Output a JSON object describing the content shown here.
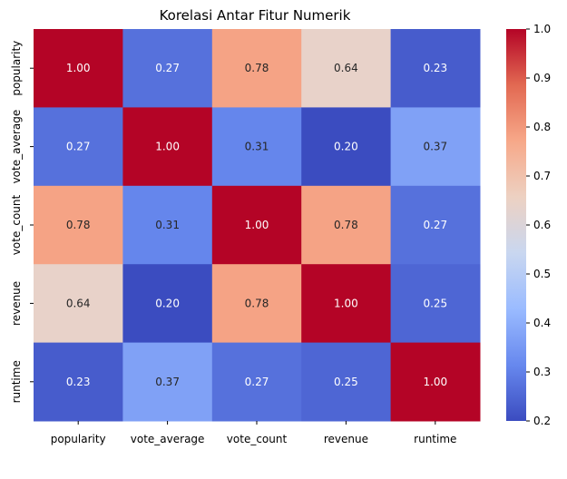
{
  "chart_data": {
    "type": "heatmap",
    "title": "Korelasi Antar Fitur Numerik",
    "xlabel": "",
    "ylabel": "",
    "x_categories": [
      "popularity",
      "vote_average",
      "vote_count",
      "revenue",
      "runtime"
    ],
    "y_categories": [
      "popularity",
      "vote_average",
      "vote_count",
      "revenue",
      "runtime"
    ],
    "values": [
      [
        1.0,
        0.27,
        0.78,
        0.64,
        0.23
      ],
      [
        0.27,
        1.0,
        0.31,
        0.2,
        0.37
      ],
      [
        0.78,
        0.31,
        1.0,
        0.78,
        0.27
      ],
      [
        0.64,
        0.2,
        0.78,
        1.0,
        0.25
      ],
      [
        0.23,
        0.37,
        0.27,
        0.25,
        1.0
      ]
    ],
    "value_format": "0.00",
    "colormap": "coolwarm",
    "vmin": 0.2,
    "vmax": 1.0,
    "colorbar_ticks": [
      "0.2",
      "0.3",
      "0.4",
      "0.5",
      "0.6",
      "0.7",
      "0.8",
      "0.9",
      "1.0"
    ],
    "colorbar_tick_values": [
      0.2,
      0.3,
      0.4,
      0.5,
      0.6,
      0.7,
      0.8,
      0.9,
      1.0
    ],
    "colormap_stops": [
      "#3b4cc0",
      "#6788ee",
      "#9abbff",
      "#c9d7f0",
      "#edd1c2",
      "#f7a889",
      "#e26952",
      "#b40426"
    ]
  }
}
